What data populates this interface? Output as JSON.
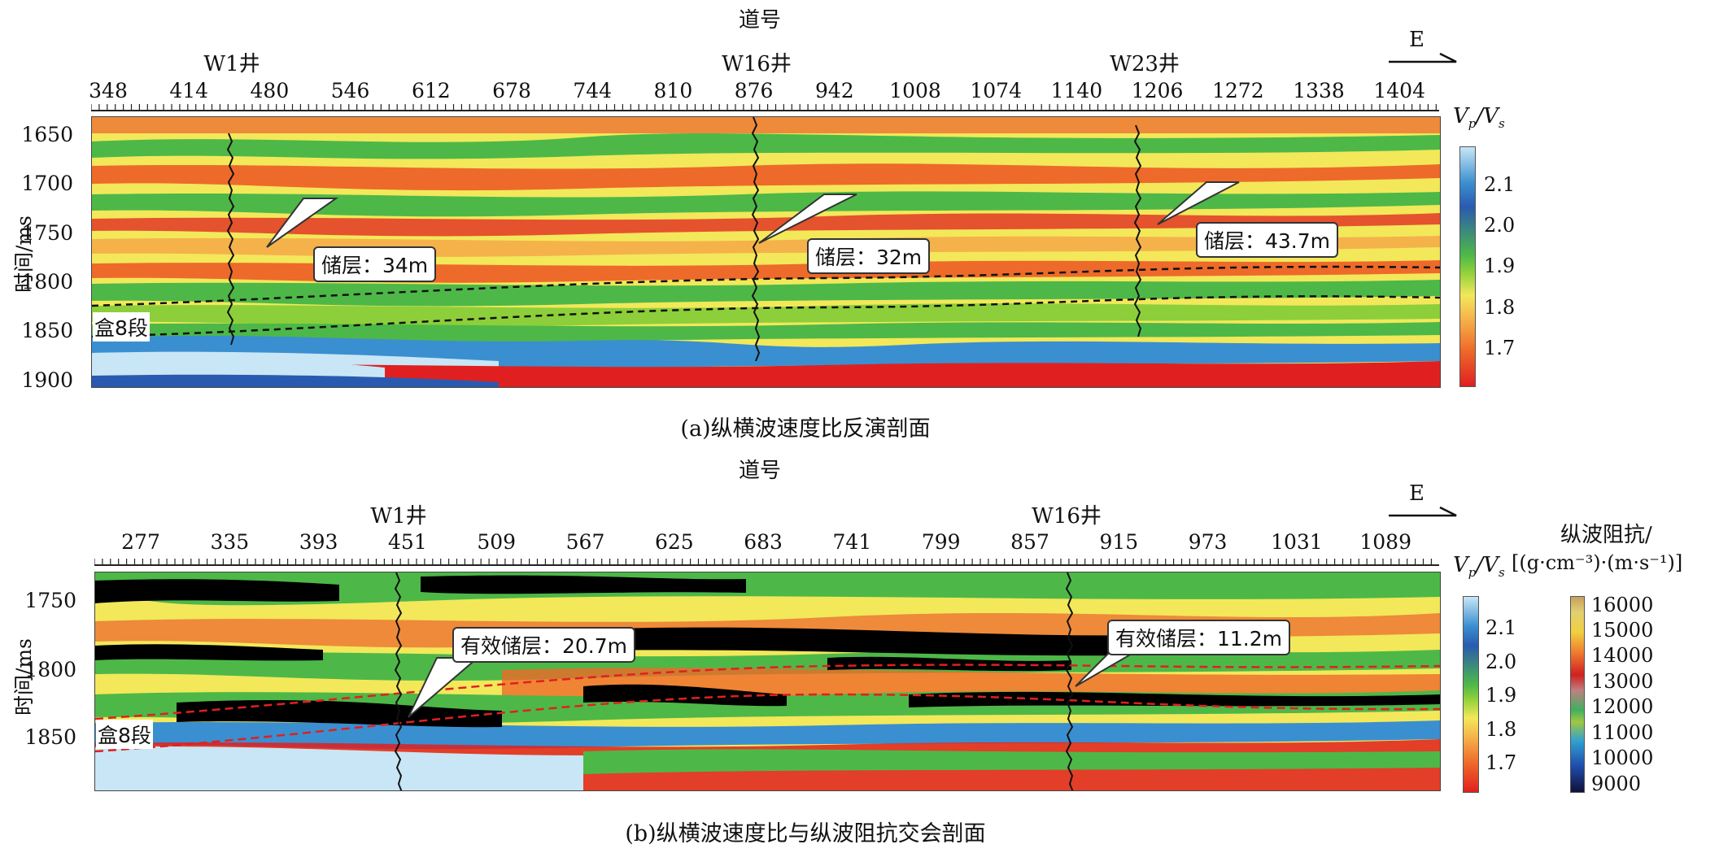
{
  "panel_a": {
    "top_axis_title": "道号",
    "wells": [
      {
        "name": "W1井",
        "trace": 458
      },
      {
        "name": "W16井",
        "trace": 883
      },
      {
        "name": "W23井",
        "trace": 1212
      }
    ],
    "ticks": [
      "348",
      "414",
      "480",
      "546",
      "612",
      "678",
      "744",
      "810",
      "876",
      "942",
      "1008",
      "1074",
      "1140",
      "1206",
      "1272",
      "1338",
      "1404"
    ],
    "y_ticks": [
      "1650",
      "1700",
      "1750",
      "1800",
      "1850",
      "1900"
    ],
    "y_label": "时间/ms",
    "direction": "E",
    "colorbar_title": "Vp/Vs",
    "colorbar_ticks": [
      "2.1",
      "2.0",
      "1.9",
      "1.8",
      "1.7"
    ],
    "callouts": [
      "储层：34m",
      "储层：32m",
      "储层：43.7m"
    ],
    "segment_label": "盒8段",
    "caption": "(a)纵横波速度比反演剖面"
  },
  "panel_b": {
    "top_axis_title": "道号",
    "wells": [
      {
        "name": "W1井",
        "trace": 444
      },
      {
        "name": "W16井",
        "trace": 892
      }
    ],
    "ticks": [
      "277",
      "335",
      "393",
      "451",
      "509",
      "567",
      "625",
      "683",
      "741",
      "799",
      "857",
      "915",
      "973",
      "1031",
      "1089"
    ],
    "y_ticks": [
      "1750",
      "1800",
      "1850"
    ],
    "y_label": "时间/ms",
    "direction": "E",
    "colorbar_title": "Vp/Vs",
    "colorbar_ticks": [
      "2.1",
      "2.0",
      "1.9",
      "1.8",
      "1.7"
    ],
    "colorbar2_title_line1": "纵波阻抗/",
    "colorbar2_title_line2": "[(g·cm⁻³)·(m·s⁻¹)]",
    "colorbar2_ticks": [
      "16000",
      "15000",
      "14000",
      "13000",
      "12000",
      "11000",
      "10000",
      "9000"
    ],
    "callouts": [
      "有效储层：20.7m",
      "有效储层：11.2m"
    ],
    "segment_label": "盒8段",
    "caption": "(b)纵横波速度比与纵波阻抗交会剖面"
  },
  "colors": {
    "vpvs_scale": [
      "#c8e6f5",
      "#3a8fd0",
      "#2a5ab0",
      "#4db848",
      "#8ccf3a",
      "#f2e85a",
      "#f5b24a",
      "#ee6a2a",
      "#e02020"
    ],
    "impedance_scale": [
      "#10103a",
      "#2050b0",
      "#30a0d0",
      "#40b060",
      "#a0c840",
      "#f0d040",
      "#f08030",
      "#d02020",
      "#c08080",
      "#e0d070"
    ]
  }
}
